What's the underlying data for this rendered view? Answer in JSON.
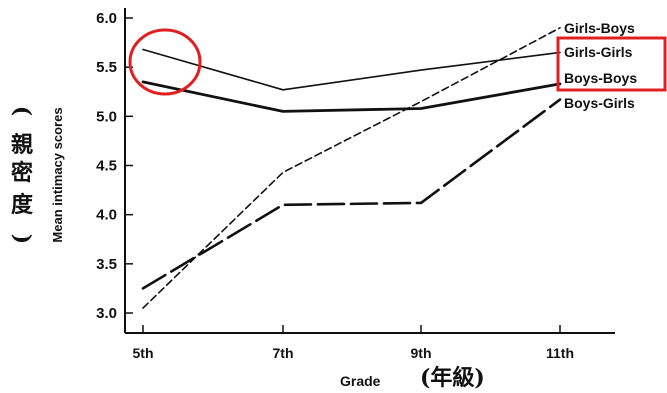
{
  "chart_data": {
    "type": "line",
    "categories": [
      "5th",
      "7th",
      "9th",
      "11th"
    ],
    "series": [
      {
        "name": "Girls-Boys",
        "values": [
          3.05,
          4.43,
          5.15,
          5.9
        ],
        "dash": "7,4",
        "stroke": 1.6,
        "color": "#111111"
      },
      {
        "name": "Girls-Girls",
        "values": [
          5.68,
          5.27,
          5.47,
          5.65
        ],
        "dash": "",
        "stroke": 1.6,
        "color": "#111111"
      },
      {
        "name": "Boys-Boys",
        "values": [
          5.35,
          5.05,
          5.08,
          5.33
        ],
        "dash": "",
        "stroke": 2.8,
        "color": "#111111"
      },
      {
        "name": "Boys-Girls",
        "values": [
          3.25,
          4.1,
          4.12,
          5.17
        ],
        "dash": "26,7",
        "stroke": 2.6,
        "color": "#111111"
      }
    ],
    "ylim": [
      3.0,
      6.0
    ],
    "yticks": [
      "3.0",
      "3.5",
      "4.0",
      "4.5",
      "5.0",
      "5.5",
      "6.0"
    ],
    "ylabel": "Mean intimacy scores",
    "ylabel_zh": [
      "(",
      "親",
      "密",
      "度",
      ")"
    ],
    "xlabel": "Grade",
    "xlabel_zh": "(年級)",
    "grid": false,
    "legend": "line-end labels at right",
    "highlights": {
      "circle_color": "#e02020",
      "box_color": "#e02020",
      "circled_category": "5th",
      "boxed_series": [
        "Girls-Girls",
        "Boys-Boys"
      ]
    }
  }
}
